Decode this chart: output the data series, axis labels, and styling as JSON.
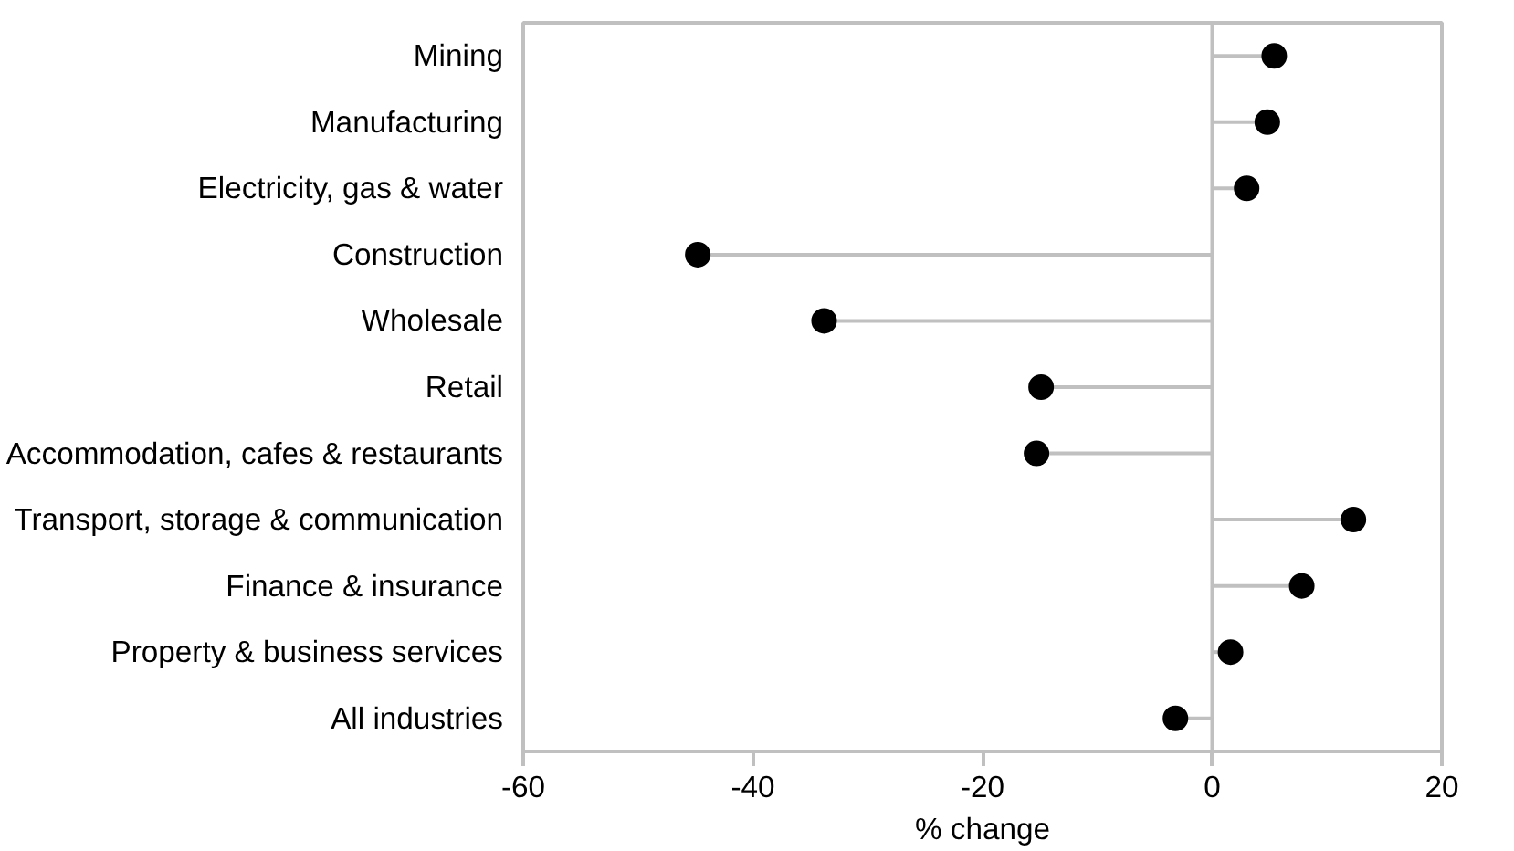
{
  "chart_data": {
    "type": "lollipop",
    "orientation": "horizontal",
    "xlabel": "% change",
    "categories": [
      "Mining",
      "Manufacturing",
      "Electricity, gas & water",
      "Construction",
      "Wholesale",
      "Retail",
      "Accommodation, cafes & restaurants",
      "Transport, storage & communication",
      "Finance & insurance",
      "Property & business services",
      "All industries"
    ],
    "values": [
      5.4,
      4.8,
      3.0,
      -44.8,
      -33.8,
      -14.9,
      -15.3,
      12.3,
      7.8,
      1.6,
      -3.2
    ],
    "color": "#000000",
    "marker": "circle",
    "xlim": [
      -60,
      20
    ],
    "xticks": [
      -60,
      -40,
      -20,
      0,
      20
    ],
    "grid": false,
    "ref_lines": [
      {
        "axis": "x",
        "value": 0,
        "color": "#c0c0c0"
      }
    ]
  }
}
